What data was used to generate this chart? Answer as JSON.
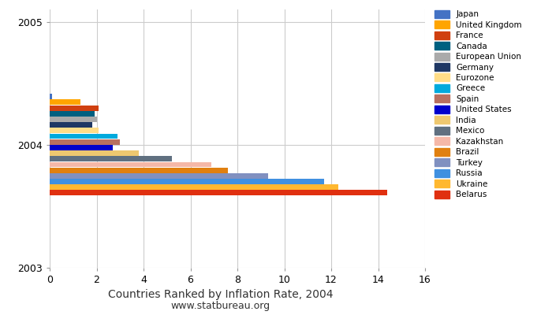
{
  "title": "Countries Ranked by Inflation Rate, 2004",
  "subtitle": "www.statbureau.org",
  "countries": [
    "Japan",
    "United Kingdom",
    "France",
    "Canada",
    "European Union",
    "Germany",
    "Eurozone",
    "Greece",
    "Spain",
    "United States",
    "India",
    "Mexico",
    "Kazakhstan",
    "Brazil",
    "Turkey",
    "Russia",
    "Ukraine",
    "Belarus"
  ],
  "values": [
    0.1,
    1.3,
    2.1,
    1.9,
    2.0,
    1.8,
    2.1,
    2.9,
    3.0,
    2.7,
    3.8,
    5.2,
    6.9,
    7.6,
    9.3,
    11.7,
    12.3,
    14.4
  ],
  "colors": [
    "#4472C4",
    "#FFA500",
    "#D04010",
    "#006080",
    "#AAAAAA",
    "#1F3864",
    "#FFDD88",
    "#00AADD",
    "#B87060",
    "#0000CC",
    "#EEC870",
    "#607080",
    "#F5B8A8",
    "#E08010",
    "#8090C0",
    "#4090E0",
    "#FFB830",
    "#E03010"
  ],
  "ytick_labels": [
    "2003",
    "2004",
    "2005"
  ],
  "ytick_positions": [
    2003,
    2004,
    2005
  ],
  "xlim": [
    0,
    16
  ],
  "xticks": [
    0,
    2,
    4,
    6,
    8,
    10,
    12,
    14,
    16
  ],
  "ylim": [
    2003.3,
    2005.1
  ],
  "y_center": 2004.0,
  "background_color": "#FFFFFF",
  "grid_color": "#CCCCCC",
  "title_fontsize": 10,
  "subtitle_fontsize": 9
}
